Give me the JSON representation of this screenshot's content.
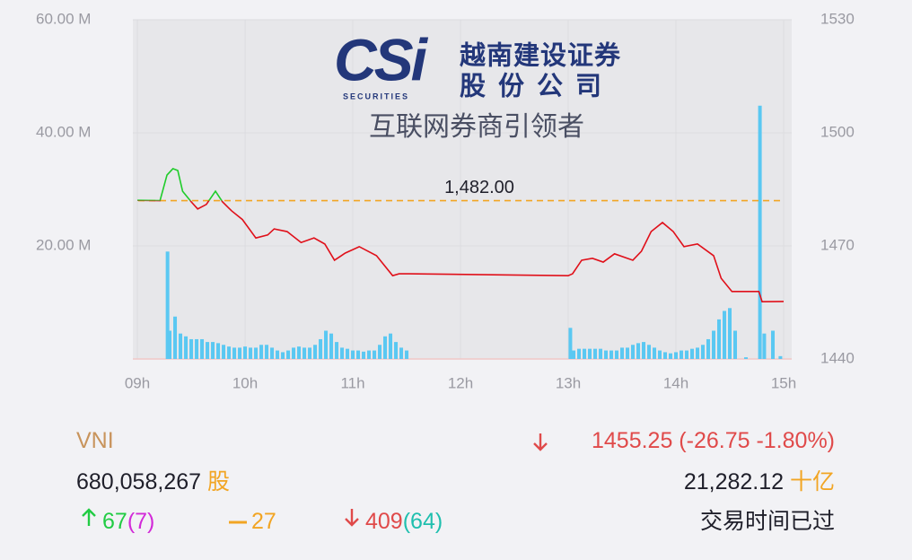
{
  "logo": {
    "mark": "CSi",
    "tagline": "SECURITIES",
    "name_line1": "越南建设证券",
    "name_line2": "股份公司",
    "slogan": "互联网券商引领者"
  },
  "chart_data": {
    "type": "line",
    "xlim": [
      8.958,
      15.075
    ],
    "xticks": [
      {
        "value": 9,
        "label": "09h"
      },
      {
        "value": 10,
        "label": "10h"
      },
      {
        "value": 11,
        "label": "11h"
      },
      {
        "value": 12,
        "label": "12h"
      },
      {
        "value": 13,
        "label": "13h"
      },
      {
        "value": 14,
        "label": "14h"
      },
      {
        "value": 15,
        "label": "15h"
      }
    ],
    "ylim": [
      1440,
      1530
    ],
    "yticks": [
      1440,
      1470,
      1500,
      1530
    ],
    "y2lim": [
      0,
      60
    ],
    "y2ticks": [
      {
        "value": 20,
        "label": "20.00 M"
      },
      {
        "value": 40,
        "label": "40.00 M"
      },
      {
        "value": 60,
        "label": "60.00 M"
      }
    ],
    "grid": true,
    "reference_line": {
      "value": 1482,
      "label": "1,482.00",
      "color": "#f2a523"
    },
    "series": [
      {
        "type": "line",
        "above_color": "#1fcc2a",
        "below_color": "#e0101a",
        "x": [
          9.0,
          9.21,
          9.275,
          9.33,
          9.375,
          9.42,
          9.5,
          9.56,
          9.64,
          9.725,
          9.79,
          9.875,
          9.975,
          10.1,
          10.21,
          10.27,
          10.39,
          10.52,
          10.64,
          10.74,
          10.83,
          10.93,
          11.06,
          11.22,
          11.37,
          11.43,
          11.52,
          13.0,
          13.04,
          13.125,
          13.225,
          13.325,
          13.43,
          13.6,
          13.68,
          13.77,
          13.875,
          13.975,
          14.075,
          14.2,
          14.35,
          14.42,
          14.52,
          14.77,
          14.8,
          15.0
        ],
        "values": [
          1482.1,
          1482,
          1488.8,
          1490.5,
          1490,
          1484.5,
          1481.7,
          1479.8,
          1481,
          1484.5,
          1481.7,
          1479.3,
          1477,
          1472.1,
          1472.9,
          1474.5,
          1473.8,
          1470.9,
          1472.1,
          1470.5,
          1466.2,
          1468.1,
          1469.8,
          1467.4,
          1462.1,
          1462.6,
          1462.6,
          1462.1,
          1462.6,
          1466.2,
          1466.7,
          1465.7,
          1467.9,
          1466.2,
          1468.6,
          1473.8,
          1476.2,
          1473.8,
          1469.8,
          1470.5,
          1467.4,
          1461.4,
          1457.9,
          1457.9,
          1455.2,
          1455.25
        ]
      },
      {
        "type": "bar",
        "axis": "y2",
        "color": "#5ac8f2",
        "x": [
          9.28,
          9.3,
          9.35,
          9.4,
          9.45,
          9.5,
          9.55,
          9.6,
          9.65,
          9.7,
          9.75,
          9.8,
          9.85,
          9.9,
          9.95,
          10.0,
          10.05,
          10.1,
          10.15,
          10.2,
          10.25,
          10.3,
          10.35,
          10.4,
          10.45,
          10.5,
          10.55,
          10.6,
          10.65,
          10.7,
          10.75,
          10.8,
          10.85,
          10.9,
          10.95,
          11.0,
          11.05,
          11.1,
          11.15,
          11.2,
          11.25,
          11.3,
          11.35,
          11.4,
          11.45,
          11.5,
          13.02,
          13.05,
          13.1,
          13.15,
          13.2,
          13.25,
          13.3,
          13.35,
          13.4,
          13.45,
          13.5,
          13.55,
          13.6,
          13.65,
          13.7,
          13.75,
          13.8,
          13.85,
          13.9,
          13.95,
          14.0,
          14.05,
          14.1,
          14.15,
          14.2,
          14.25,
          14.3,
          14.35,
          14.4,
          14.45,
          14.5,
          14.55,
          14.65,
          14.78,
          14.82,
          14.9,
          14.97
        ],
        "values": [
          19,
          5,
          7.5,
          4.5,
          4,
          3.5,
          3.5,
          3.5,
          3,
          3,
          2.8,
          2.5,
          2.2,
          2,
          2,
          2.2,
          2,
          2,
          2.5,
          2.5,
          2,
          1.5,
          1.2,
          1.5,
          2,
          2.2,
          2,
          2,
          2.5,
          3.5,
          5,
          4.5,
          3,
          2,
          1.8,
          1.5,
          1.5,
          1.3,
          1.5,
          1.5,
          2.5,
          4,
          4.5,
          3,
          2,
          1.5,
          5.5,
          1.5,
          1.8,
          1.8,
          1.8,
          1.8,
          1.8,
          1.5,
          1.5,
          1.5,
          2,
          2,
          2.5,
          2.8,
          3,
          2.5,
          2,
          1.5,
          1.2,
          1,
          1.2,
          1.5,
          1.5,
          1.8,
          2,
          2.5,
          3.5,
          5,
          7,
          8.5,
          9,
          5,
          0.3,
          44.8,
          4.5,
          5,
          0.5
        ]
      }
    ]
  },
  "summary": {
    "index_name": "VNI",
    "index_change": "1455.25 (-26.75 -1.80%)",
    "volume": "680,058,267",
    "volume_unit": "股",
    "turnover": "21,282.12",
    "turnover_unit": "十亿",
    "advances": "67",
    "advances_ceiling": "(7)",
    "unchanged": "27",
    "declines": "409",
    "declines_floor": "(64)",
    "status": "交易时间已过"
  }
}
